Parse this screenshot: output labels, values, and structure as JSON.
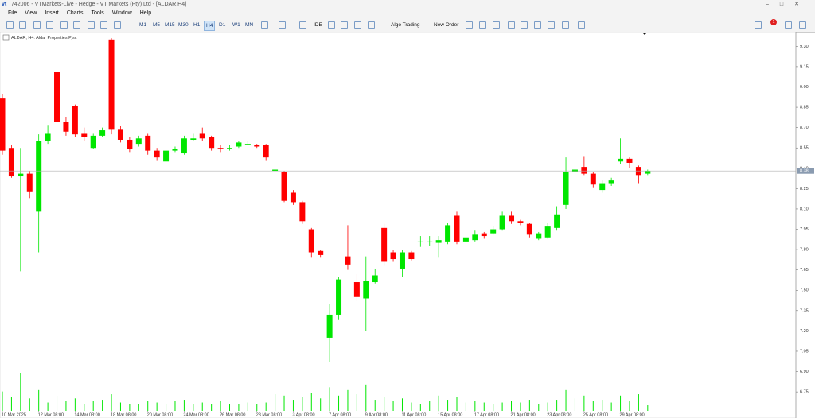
{
  "window": {
    "title": "742006 - VTMarkets-Live - Hedge - VT Markets (Pty) Ltd - [ALDAR,H4]"
  },
  "menu": [
    "File",
    "View",
    "Insert",
    "Charts",
    "Tools",
    "Window",
    "Help"
  ],
  "toolbar": {
    "timeframes": [
      "M1",
      "M5",
      "M15",
      "M30",
      "H1",
      "H4",
      "D1",
      "W1",
      "MN"
    ],
    "active_timeframe": 5,
    "ide": "IDE",
    "algo_trading": "Algo Trading",
    "new_order": "New Order",
    "notifications": 1
  },
  "chart_data": {
    "type": "candlestick",
    "label": "ALDAR, H4: Aldar Properties Pjsc",
    "categories": [
      "10 Mar 2025",
      null,
      null,
      null,
      "12 Mar 08:00",
      null,
      null,
      null,
      "14 Mar 08:00",
      null,
      null,
      null,
      "18 Mar 08:00",
      null,
      null,
      null,
      "20 Mar 08:00",
      null,
      null,
      null,
      "24 Mar 08:00",
      null,
      null,
      null,
      "26 Mar 08:00",
      null,
      null,
      null,
      "28 Mar 08:00",
      null,
      null,
      null,
      "3 Apr 08:00",
      null,
      null,
      null,
      "7 Apr 08:00",
      null,
      null,
      null,
      "9 Apr 08:00",
      null,
      null,
      null,
      "11 Apr 08:00",
      null,
      null,
      null,
      "15 Apr 08:00",
      null,
      null,
      null,
      "17 Apr 08:00",
      null,
      null,
      null,
      "21 Apr 08:00",
      null,
      null,
      null,
      "23 Apr 08:00",
      null,
      null,
      null,
      "25 Apr 08:00",
      null,
      null,
      null,
      "29 Apr 08:00",
      null,
      null,
      null
    ],
    "open": [
      8.92,
      8.55,
      8.34,
      8.36,
      8.08,
      8.6,
      9.11,
      8.74,
      8.86,
      8.66,
      8.55,
      8.64,
      9.35,
      8.69,
      8.61,
      8.58,
      8.64,
      8.53,
      8.45,
      8.53,
      8.51,
      8.61,
      8.66,
      8.63,
      8.55,
      8.54,
      8.56,
      8.58,
      8.57,
      8.57,
      8.38,
      8.37,
      8.22,
      8.15,
      7.95,
      7.79,
      7.15,
      7.32,
      7.75,
      7.56,
      7.44,
      7.56,
      7.96,
      7.78,
      7.66,
      7.78,
      7.86,
      7.86,
      7.85,
      7.86,
      8.05,
      7.86,
      7.87,
      7.92,
      7.92,
      7.95,
      8.05,
      8.01,
      7.99,
      7.88,
      7.89,
      7.96,
      8.13,
      8.37,
      8.41,
      8.36,
      8.24,
      8.29,
      8.45,
      8.47,
      8.41,
      8.36
    ],
    "high": [
      8.95,
      8.57,
      8.55,
      8.38,
      8.65,
      8.72,
      9.12,
      8.78,
      8.87,
      8.7,
      8.66,
      8.7,
      9.36,
      8.71,
      8.63,
      8.64,
      8.66,
      8.55,
      8.54,
      8.56,
      8.64,
      8.66,
      8.7,
      8.64,
      8.57,
      8.57,
      8.6,
      8.6,
      8.58,
      8.58,
      8.46,
      8.38,
      8.24,
      8.16,
      7.96,
      7.8,
      7.4,
      7.6,
      7.98,
      7.62,
      7.75,
      7.66,
      7.99,
      7.8,
      7.8,
      7.79,
      7.9,
      7.9,
      7.9,
      8.0,
      8.08,
      7.92,
      7.94,
      7.93,
      7.97,
      8.08,
      8.08,
      8.02,
      8.0,
      7.93,
      8.0,
      8.12,
      8.48,
      8.42,
      8.49,
      8.37,
      8.31,
      8.33,
      8.62,
      8.48,
      8.42,
      8.39
    ],
    "low": [
      8.5,
      8.33,
      7.64,
      8.18,
      7.78,
      8.58,
      8.72,
      8.64,
      8.63,
      8.6,
      8.54,
      8.63,
      8.65,
      8.59,
      8.52,
      8.56,
      8.5,
      8.46,
      8.44,
      8.52,
      8.5,
      8.6,
      8.6,
      8.53,
      8.52,
      8.53,
      8.55,
      8.57,
      8.55,
      8.46,
      8.33,
      8.15,
      8.13,
      7.99,
      7.74,
      7.74,
      6.97,
      7.28,
      7.65,
      7.42,
      7.2,
      7.55,
      7.68,
      7.71,
      7.6,
      7.72,
      7.82,
      7.83,
      7.74,
      7.84,
      7.84,
      7.84,
      7.86,
      7.88,
      7.91,
      7.94,
      7.99,
      7.98,
      7.89,
      7.87,
      7.88,
      7.94,
      8.1,
      8.35,
      8.35,
      8.26,
      8.22,
      8.27,
      8.43,
      8.4,
      8.29,
      8.35
    ],
    "close": [
      8.53,
      8.34,
      8.36,
      8.23,
      8.6,
      8.66,
      8.74,
      8.67,
      8.65,
      8.63,
      8.64,
      8.68,
      8.69,
      8.61,
      8.54,
      8.62,
      8.53,
      8.48,
      8.53,
      8.54,
      8.62,
      8.62,
      8.62,
      8.55,
      8.54,
      8.55,
      8.59,
      8.58,
      8.56,
      8.48,
      8.39,
      8.16,
      8.15,
      8.01,
      7.78,
      7.76,
      7.32,
      7.58,
      7.69,
      7.45,
      7.57,
      7.61,
      7.71,
      7.73,
      7.78,
      7.73,
      7.86,
      7.86,
      7.87,
      7.98,
      7.86,
      7.89,
      7.91,
      7.9,
      7.95,
      8.05,
      8.01,
      8.0,
      7.91,
      7.92,
      7.97,
      8.06,
      8.37,
      8.39,
      8.36,
      8.28,
      8.29,
      8.31,
      8.47,
      8.44,
      8.35,
      8.38
    ],
    "volume": [
      28,
      20,
      55,
      18,
      30,
      12,
      22,
      14,
      18,
      10,
      14,
      16,
      24,
      12,
      10,
      10,
      14,
      12,
      10,
      14,
      16,
      10,
      12,
      10,
      14,
      10,
      10,
      12,
      10,
      12,
      24,
      22,
      16,
      20,
      26,
      18,
      34,
      22,
      30,
      24,
      38,
      16,
      20,
      14,
      18,
      12,
      10,
      14,
      22,
      16,
      20,
      12,
      14,
      12,
      10,
      12,
      14,
      12,
      16,
      10,
      12,
      16,
      30,
      18,
      22,
      14,
      16,
      12,
      22,
      14,
      24,
      8
    ],
    "up_color": "#00e600",
    "down_color": "#ff0000",
    "volume_color": "#00e600",
    "ylim": [
      6.61,
      9.39
    ],
    "yticks": [
      {
        "value": 9.3,
        "label": "9.30"
      },
      {
        "value": 9.15,
        "label": "9.15"
      },
      {
        "value": 9.0,
        "label": "9.00"
      },
      {
        "value": 8.85,
        "label": "8.85"
      },
      {
        "value": 8.7,
        "label": "8.70"
      },
      {
        "value": 8.55,
        "label": "8.55"
      },
      {
        "value": 8.4,
        "label": "8.40"
      },
      {
        "value": 8.25,
        "label": "8.25"
      },
      {
        "value": 8.1,
        "label": "8.10"
      },
      {
        "value": 7.95,
        "label": "7.95"
      },
      {
        "value": 7.8,
        "label": "7.80"
      },
      {
        "value": 7.65,
        "label": "7.65"
      },
      {
        "value": 7.5,
        "label": "7.50"
      },
      {
        "value": 7.35,
        "label": "7.35"
      },
      {
        "value": 7.2,
        "label": "7.20"
      },
      {
        "value": 7.05,
        "label": "7.05"
      },
      {
        "value": 6.9,
        "label": "6.90"
      },
      {
        "value": 6.75,
        "label": "6.75"
      }
    ],
    "current_price": 8.38
  }
}
